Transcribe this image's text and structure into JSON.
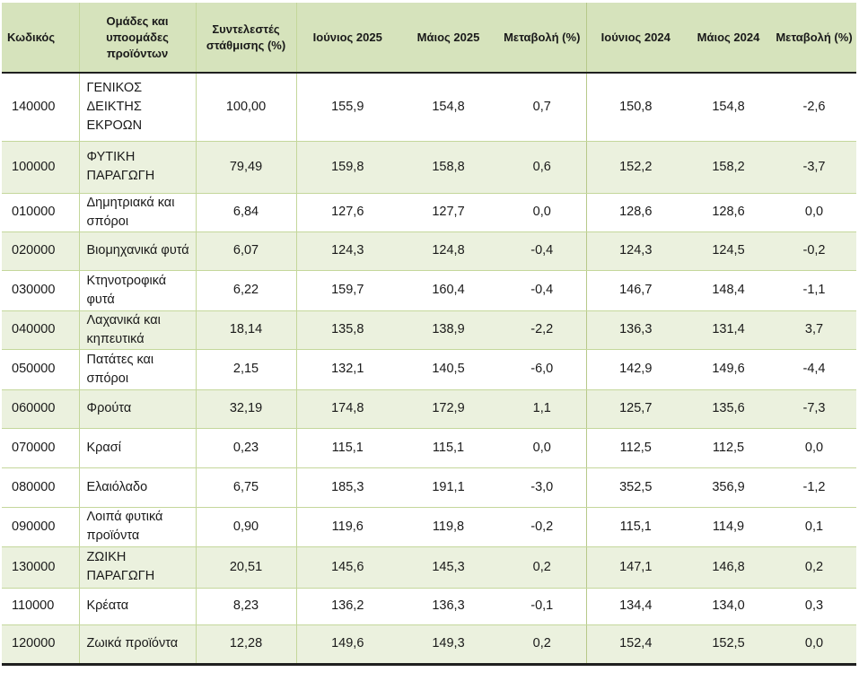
{
  "headers": [
    "Κωδικός",
    "Ομάδες και υποομάδες προϊόντων",
    "Συντελεστές στάθμισης (%)",
    "Ιούνιος 2025",
    "Μάιος 2025",
    "Μεταβολή (%)",
    "Ιούνιος 2024",
    "Μάιος 2024",
    "Μεταβολή (%)"
  ],
  "rows": [
    {
      "code": "140000",
      "name": "ΓΕΝΙΚΟΣ ΔΕΙΚΤΗΣ ΕΚΡΟΩΝ",
      "weight": "100,00",
      "jun2025": "155,9",
      "may2025": "154,8",
      "chg2025": "0,7",
      "jun2024": "150,8",
      "may2024": "154,8",
      "chg2024": "-2,6"
    },
    {
      "code": "100000",
      "name": "ΦΥΤΙΚΗ ΠΑΡΑΓΩΓΗ",
      "weight": "79,49",
      "jun2025": "159,8",
      "may2025": "158,8",
      "chg2025": "0,6",
      "jun2024": "152,2",
      "may2024": "158,2",
      "chg2024": "-3,7"
    },
    {
      "code": "010000",
      "name": "Δημητριακά και σπόροι",
      "weight": "6,84",
      "jun2025": "127,6",
      "may2025": "127,7",
      "chg2025": "0,0",
      "jun2024": "128,6",
      "may2024": "128,6",
      "chg2024": "0,0"
    },
    {
      "code": "020000",
      "name": "Βιομηχανικά φυτά",
      "weight": "6,07",
      "jun2025": "124,3",
      "may2025": "124,8",
      "chg2025": "-0,4",
      "jun2024": "124,3",
      "may2024": "124,5",
      "chg2024": "-0,2"
    },
    {
      "code": "030000",
      "name": "Κτηνοτροφικά φυτά",
      "weight": "6,22",
      "jun2025": "159,7",
      "may2025": "160,4",
      "chg2025": "-0,4",
      "jun2024": "146,7",
      "may2024": "148,4",
      "chg2024": "-1,1"
    },
    {
      "code": "040000",
      "name": "Λαχανικά και κηπευτικά",
      "weight": "18,14",
      "jun2025": "135,8",
      "may2025": "138,9",
      "chg2025": "-2,2",
      "jun2024": "136,3",
      "may2024": "131,4",
      "chg2024": "3,7"
    },
    {
      "code": "050000",
      "name": "Πατάτες και σπόροι",
      "weight": "2,15",
      "jun2025": "132,1",
      "may2025": "140,5",
      "chg2025": "-6,0",
      "jun2024": "142,9",
      "may2024": "149,6",
      "chg2024": "-4,4"
    },
    {
      "code": "060000",
      "name": "Φρούτα",
      "weight": "32,19",
      "jun2025": "174,8",
      "may2025": "172,9",
      "chg2025": "1,1",
      "jun2024": "125,7",
      "may2024": "135,6",
      "chg2024": "-7,3"
    },
    {
      "code": "070000",
      "name": "Κρασί",
      "weight": "0,23",
      "jun2025": "115,1",
      "may2025": "115,1",
      "chg2025": "0,0",
      "jun2024": "112,5",
      "may2024": "112,5",
      "chg2024": "0,0"
    },
    {
      "code": "080000",
      "name": "Ελαιόλαδο",
      "weight": "6,75",
      "jun2025": "185,3",
      "may2025": "191,1",
      "chg2025": "-3,0",
      "jun2024": "352,5",
      "may2024": "356,9",
      "chg2024": "-1,2"
    },
    {
      "code": "090000",
      "name": "Λοιπά φυτικά προϊόντα",
      "weight": "0,90",
      "jun2025": "119,6",
      "may2025": "119,8",
      "chg2025": "-0,2",
      "jun2024": "115,1",
      "may2024": "114,9",
      "chg2024": "0,1"
    },
    {
      "code": "130000",
      "name": "ΖΩΙΚΗ ΠΑΡΑΓΩΓΗ",
      "weight": "20,51",
      "jun2025": "145,6",
      "may2025": "145,3",
      "chg2025": "0,2",
      "jun2024": "147,1",
      "may2024": "146,8",
      "chg2024": "0,2"
    },
    {
      "code": "110000",
      "name": "Κρέατα",
      "weight": "8,23",
      "jun2025": "136,2",
      "may2025": "136,3",
      "chg2025": "-0,1",
      "jun2024": "134,4",
      "may2024": "134,0",
      "chg2024": "0,3"
    },
    {
      "code": "120000",
      "name": "Ζωικά προϊόντα",
      "weight": "12,28",
      "jun2025": "149,6",
      "may2025": "149,3",
      "chg2025": "0,2",
      "jun2024": "152,4",
      "may2024": "152,5",
      "chg2024": "0,0"
    }
  ],
  "colors": {
    "header_bg": "#d6e3bc",
    "row_green": "#ebf1de",
    "row_white": "#ffffff"
  }
}
